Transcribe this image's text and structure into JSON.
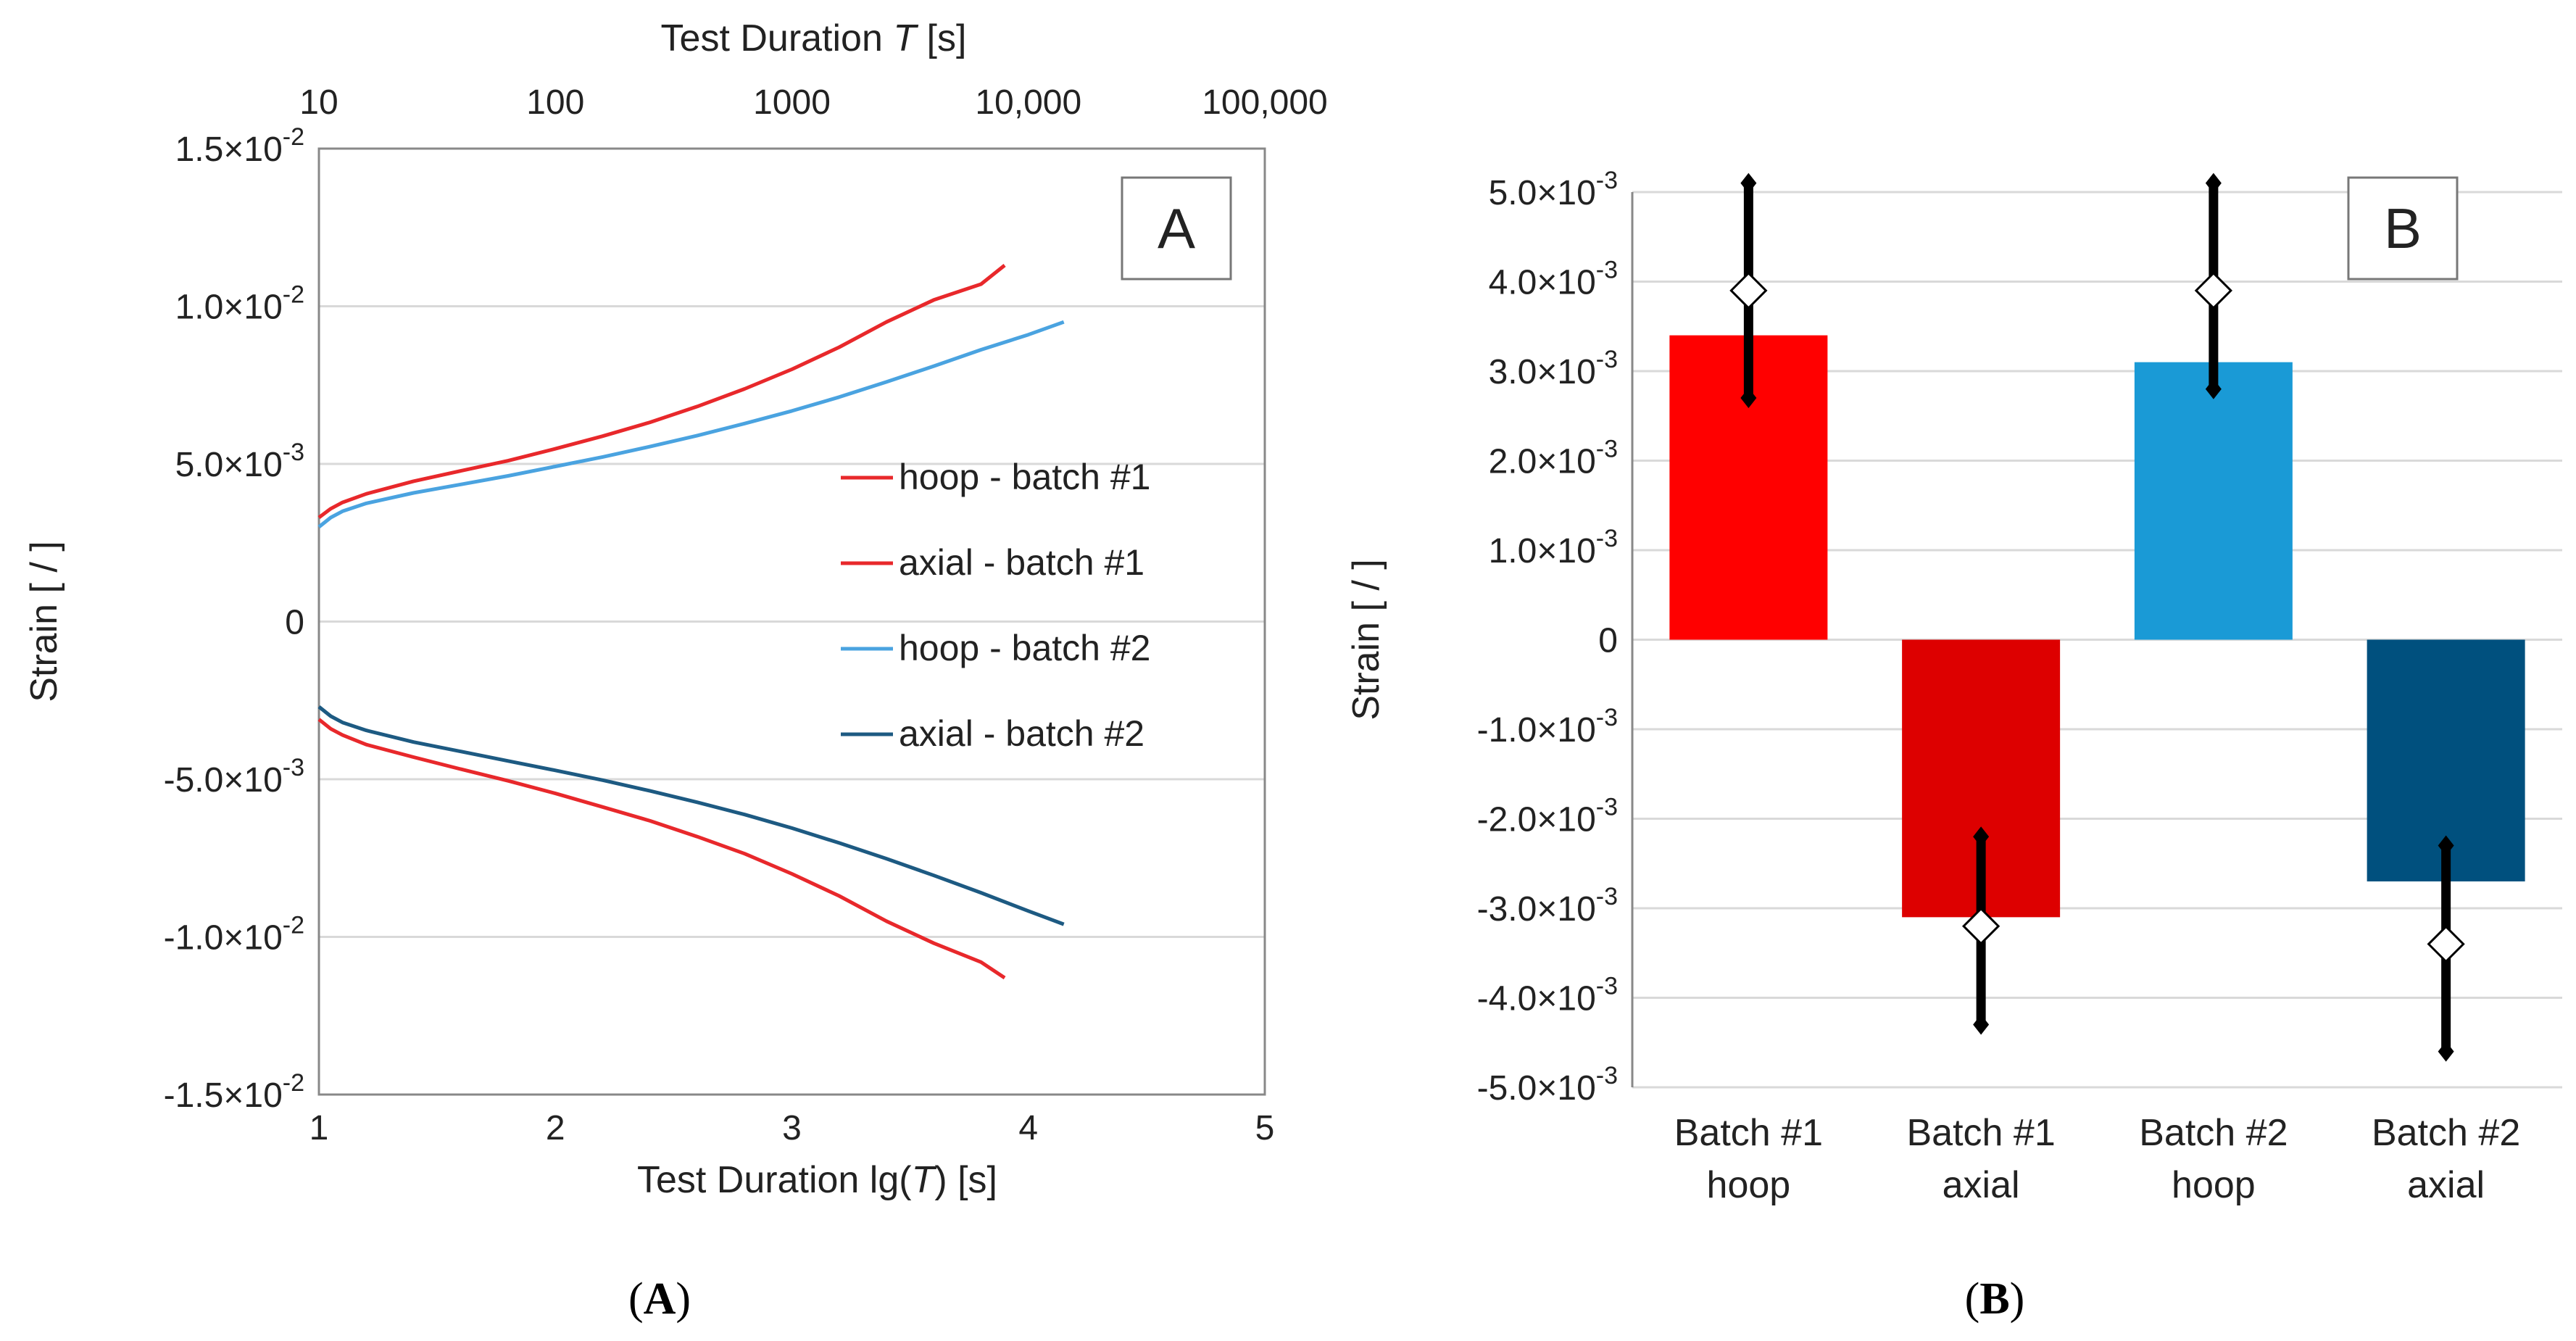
{
  "chart_data": [
    {
      "id": "A",
      "type": "line",
      "panel_label": "A",
      "caption": "A",
      "xlabel_parts": [
        "Test Duration lg(",
        "T",
        ") [s]"
      ],
      "top_xlabel_parts": [
        "Test Duration ",
        "T",
        " [s]"
      ],
      "ylabel": "Strain [ / ]",
      "xlim": [
        1,
        5
      ],
      "ylim": [
        -0.015,
        0.015
      ],
      "x_ticks": [
        1,
        2,
        3,
        4,
        5
      ],
      "x_tick_labels": [
        "1",
        "2",
        "3",
        "4",
        "5"
      ],
      "top_x_ticks": [
        1,
        2,
        3,
        4,
        5
      ],
      "top_x_tick_labels": [
        "10",
        "100",
        "1000",
        "10,000",
        "100,000"
      ],
      "y_ticks": [
        -0.015,
        -0.01,
        -0.005,
        0,
        0.005,
        0.01,
        0.015
      ],
      "y_tick_labels": [
        {
          "mant": "-1.5×10",
          "exp": "-2"
        },
        {
          "mant": "-1.0×10",
          "exp": "-2"
        },
        {
          "mant": "-5.0×10",
          "exp": "-3"
        },
        {
          "mant": "0",
          "exp": ""
        },
        {
          "mant": "5.0×10",
          "exp": "-3"
        },
        {
          "mant": "1.0×10",
          "exp": "-2"
        },
        {
          "mant": "1.5×10",
          "exp": "-2"
        }
      ],
      "grid": "horizontal",
      "legend_position": "right",
      "series": [
        {
          "name": "hoop - batch #1",
          "color": "#e8282b",
          "x": [
            1.0,
            1.05,
            1.1,
            1.2,
            1.4,
            1.6,
            1.8,
            2.0,
            2.2,
            2.4,
            2.6,
            2.8,
            3.0,
            3.2,
            3.4,
            3.6,
            3.8,
            3.9
          ],
          "y": [
            0.0033,
            0.00358,
            0.00378,
            0.00405,
            0.00445,
            0.00478,
            0.0051,
            0.00548,
            0.00588,
            0.00632,
            0.00682,
            0.00738,
            0.008,
            0.0087,
            0.0095,
            0.0102,
            0.0107,
            0.0113
          ]
        },
        {
          "name": "axial - batch #1",
          "color": "#e8282b",
          "x": [
            1.0,
            1.05,
            1.1,
            1.2,
            1.4,
            1.6,
            1.8,
            2.0,
            2.2,
            2.4,
            2.6,
            2.8,
            3.0,
            3.2,
            3.4,
            3.6,
            3.8,
            3.9
          ],
          "y": [
            -0.0031,
            -0.0034,
            -0.0036,
            -0.0039,
            -0.0043,
            -0.00468,
            -0.00505,
            -0.00545,
            -0.00588,
            -0.00632,
            -0.00682,
            -0.00736,
            -0.008,
            -0.0087,
            -0.0095,
            -0.0102,
            -0.0108,
            -0.0113
          ]
        },
        {
          "name": "hoop - batch #2",
          "color": "#4aa3e0",
          "x": [
            1.0,
            1.05,
            1.1,
            1.2,
            1.4,
            1.6,
            1.8,
            2.0,
            2.2,
            2.4,
            2.6,
            2.8,
            3.0,
            3.2,
            3.4,
            3.6,
            3.8,
            4.0,
            4.15
          ],
          "y": [
            0.003,
            0.0033,
            0.0035,
            0.00375,
            0.00408,
            0.00435,
            0.00462,
            0.00492,
            0.00522,
            0.00555,
            0.0059,
            0.00628,
            0.00668,
            0.00712,
            0.0076,
            0.0081,
            0.00862,
            0.0091,
            0.0095
          ]
        },
        {
          "name": "axial - batch #2",
          "color": "#1d5a82",
          "x": [
            1.0,
            1.05,
            1.1,
            1.2,
            1.4,
            1.6,
            1.8,
            2.0,
            2.2,
            2.4,
            2.6,
            2.8,
            3.0,
            3.2,
            3.4,
            3.6,
            3.8,
            4.0,
            4.15
          ],
          "y": [
            -0.0027,
            -0.003,
            -0.0032,
            -0.00345,
            -0.00382,
            -0.00412,
            -0.00442,
            -0.00472,
            -0.00503,
            -0.00537,
            -0.00573,
            -0.00612,
            -0.00655,
            -0.00702,
            -0.00752,
            -0.00805,
            -0.0086,
            -0.00918,
            -0.0096
          ]
        }
      ]
    },
    {
      "id": "B",
      "type": "bar",
      "panel_label": "B",
      "caption": "B",
      "ylabel": "Strain [ / ]",
      "ylim": [
        -0.005,
        0.005
      ],
      "y_ticks": [
        -0.005,
        -0.004,
        -0.003,
        -0.002,
        -0.001,
        0,
        0.001,
        0.002,
        0.003,
        0.004,
        0.005
      ],
      "y_tick_labels": [
        {
          "mant": "-5.0×10",
          "exp": "-3"
        },
        {
          "mant": "-4.0×10",
          "exp": "-3"
        },
        {
          "mant": "-3.0×10",
          "exp": "-3"
        },
        {
          "mant": "-2.0×10",
          "exp": "-3"
        },
        {
          "mant": "-1.0×10",
          "exp": "-3"
        },
        {
          "mant": "0",
          "exp": ""
        },
        {
          "mant": "1.0×10",
          "exp": "-3"
        },
        {
          "mant": "2.0×10",
          "exp": "-3"
        },
        {
          "mant": "3.0×10",
          "exp": "-3"
        },
        {
          "mant": "4.0×10",
          "exp": "-3"
        },
        {
          "mant": "5.0×10",
          "exp": "-3"
        }
      ],
      "grid": "horizontal",
      "categories": [
        [
          "Batch #1",
          "hoop"
        ],
        [
          "Batch #1",
          "axial"
        ],
        [
          "Batch #2",
          "hoop"
        ],
        [
          "Batch #2",
          "axial"
        ]
      ],
      "values": [
        0.0034,
        -0.0031,
        0.0031,
        -0.0027
      ],
      "colors": [
        "#ff0000",
        "#dd0000",
        "#1a9ad6",
        "#00507e"
      ],
      "markers": [
        0.0039,
        -0.0032,
        0.0039,
        -0.0034
      ],
      "error_low": [
        0.0027,
        -0.0043,
        0.0028,
        -0.0046
      ],
      "error_high": [
        0.0051,
        -0.0022,
        0.0051,
        -0.0023
      ]
    }
  ]
}
